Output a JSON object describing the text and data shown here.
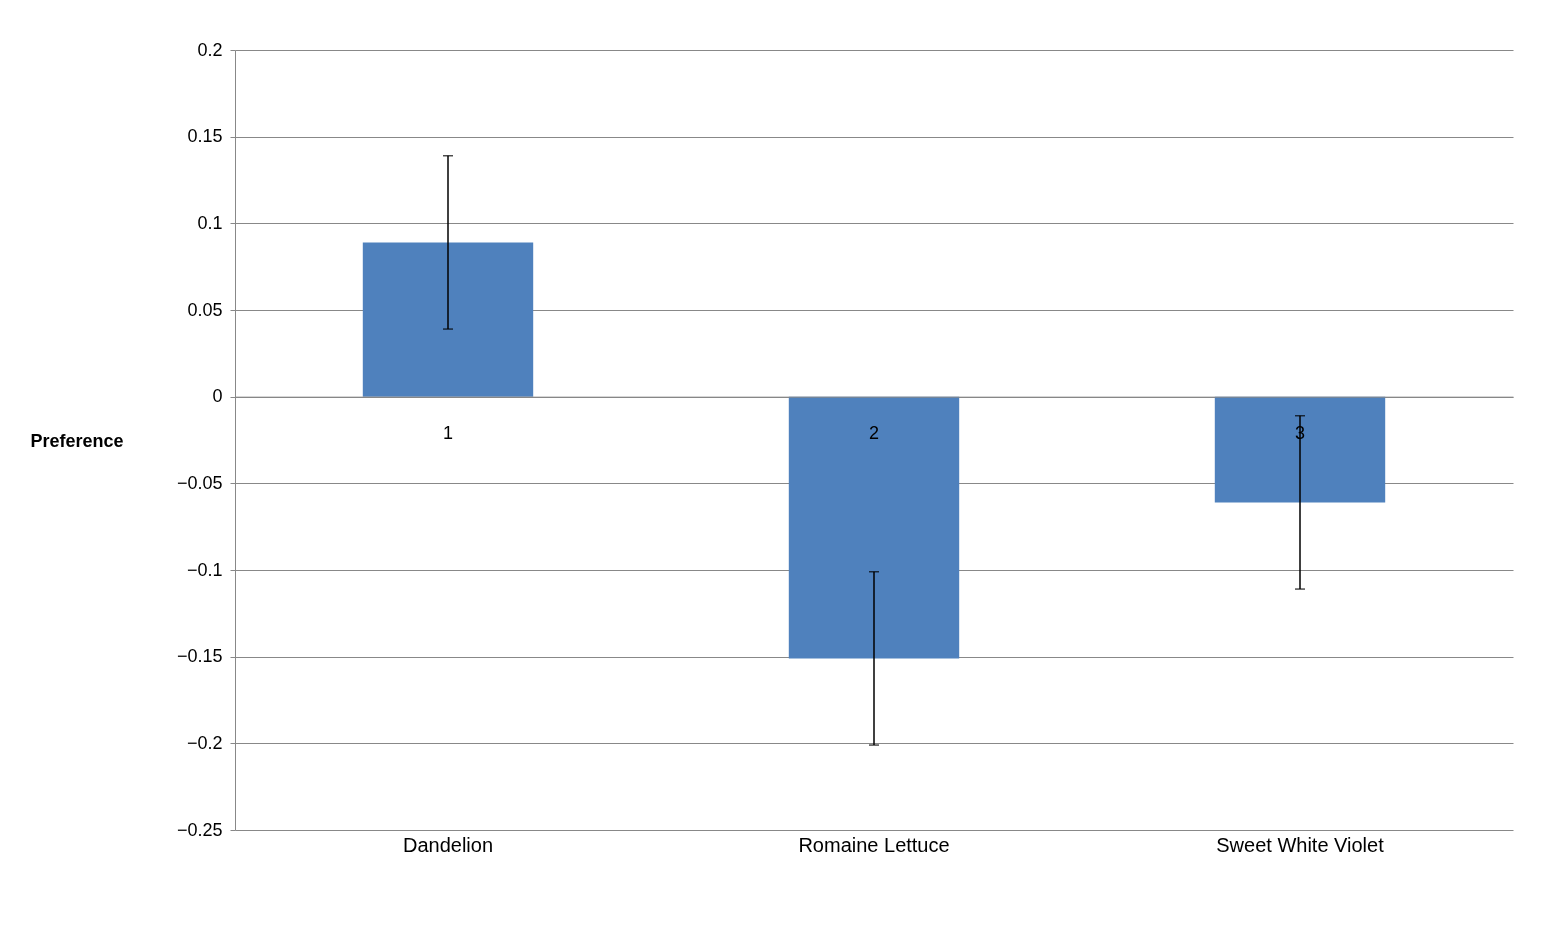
{
  "chart_data": {
    "type": "bar",
    "ylabel": "Preference",
    "categories": [
      "1",
      "2",
      "3"
    ],
    "values": [
      0.089,
      -0.151,
      -0.061
    ],
    "errors": [
      0.05,
      0.05,
      0.05
    ],
    "color": "#4f81bd",
    "ylim": [
      -0.25,
      0.2
    ],
    "yticks": [
      -0.25,
      -0.2,
      -0.15,
      -0.1,
      -0.05,
      0,
      0.05,
      0.1,
      0.15,
      0.2
    ],
    "grid": "y",
    "annotations": [
      "Dandelion",
      "Romaine Lettuce",
      "Sweet White Violet"
    ]
  }
}
